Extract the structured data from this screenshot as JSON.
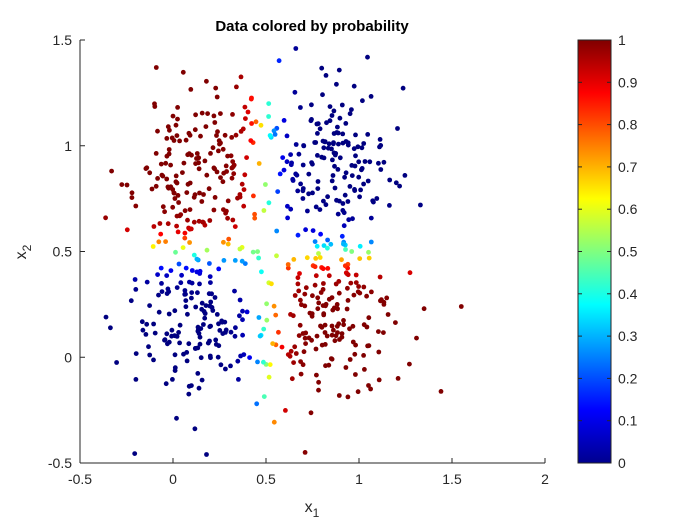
{
  "chart_data": {
    "type": "scatter",
    "title": "Data colored by probability",
    "xlabel": "x",
    "xlabel_subscript": "1",
    "ylabel": "x",
    "ylabel_subscript": "2",
    "xlim": [
      -0.5,
      2
    ],
    "ylim": [
      -0.5,
      1.5
    ],
    "xticks": [
      -0.5,
      0,
      0.5,
      1,
      1.5,
      2
    ],
    "xtick_labels": [
      "-0.5",
      "0",
      "0.5",
      "1",
      "1.5",
      "2"
    ],
    "yticks": [
      -0.5,
      0,
      0.5,
      1,
      1.5
    ],
    "ytick_labels": [
      "-0.5",
      "0",
      "0.5",
      "1",
      "1.5"
    ],
    "grid": false,
    "colormap": "jet",
    "colorbar": {
      "range": [
        0,
        1
      ],
      "ticks": [
        0,
        0.1,
        0.2,
        0.3,
        0.4,
        0.5,
        0.6,
        0.7,
        0.8,
        0.9,
        1
      ],
      "tick_labels": [
        "0",
        "0.1",
        "0.2",
        "0.3",
        "0.4",
        "0.5",
        "0.6",
        "0.7",
        "0.8",
        "0.9",
        "1"
      ]
    },
    "clusters": [
      {
        "center": [
          0.15,
          0.9
        ],
        "spread": [
          0.18,
          0.2
        ],
        "count": 180,
        "seed": 11
      },
      {
        "center": [
          0.85,
          0.9
        ],
        "spread": [
          0.18,
          0.2
        ],
        "count": 180,
        "seed": 23
      },
      {
        "center": [
          0.15,
          0.2
        ],
        "spread": [
          0.18,
          0.2
        ],
        "count": 180,
        "seed": 37
      },
      {
        "center": [
          0.85,
          0.2
        ],
        "spread": [
          0.18,
          0.2
        ],
        "count": 180,
        "seed": 41
      }
    ],
    "outliers": [
      [
        0.66,
        1.46
      ],
      [
        1.55,
        0.24
      ],
      [
        0.18,
        -0.46
      ],
      [
        0.71,
        -0.45
      ],
      [
        -0.36,
        0.19
      ],
      [
        1.33,
        0.72
      ],
      [
        -0.33,
        0.88
      ],
      [
        0.45,
        -0.22
      ],
      [
        1.21,
        -0.1
      ],
      [
        -0.09,
        1.37
      ]
    ]
  }
}
